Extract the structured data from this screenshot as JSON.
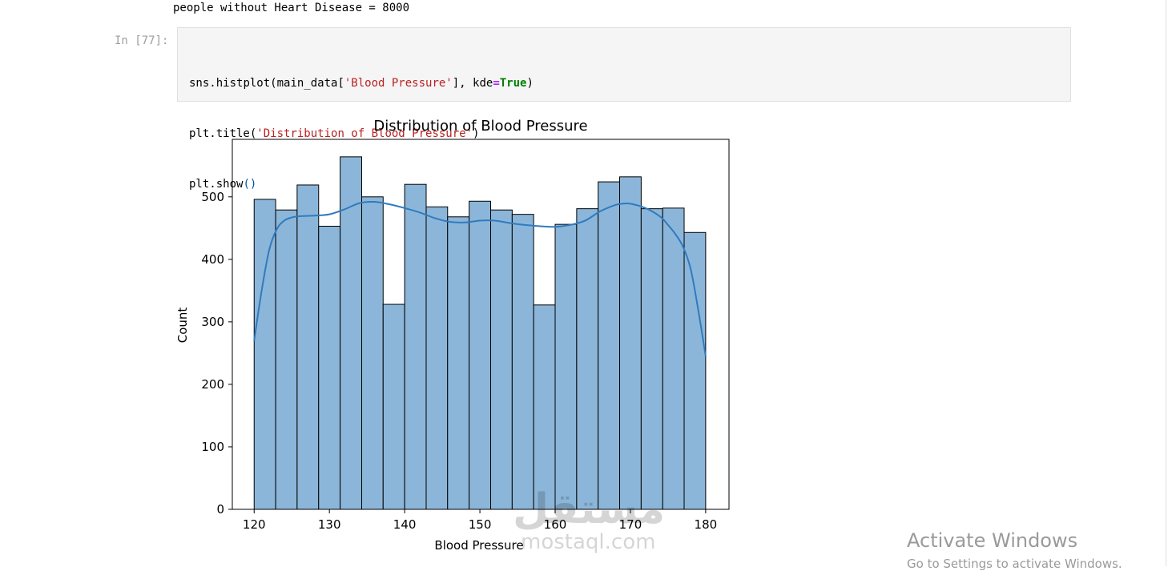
{
  "previous_output": "people without Heart Disease = 8000",
  "cell": {
    "prompt": "In [77]:",
    "code": {
      "l1_a": "sns",
      "l1_b": ".histplot(main_data[",
      "l1_str": "'Blood Pressure'",
      "l1_c": "], kde",
      "l1_eq": "=",
      "l1_true": "True",
      "l1_d": ")",
      "l2_a": "plt.title(",
      "l2_str": "'Distribution of Blood Pressure'",
      "l2_b": ")",
      "l3_a": "plt.show",
      "l3_b": "()"
    }
  },
  "chart_data": {
    "type": "bar",
    "title": "Distribution of Blood Pressure",
    "xlabel": "Blood Pressure",
    "ylabel": "Count",
    "bin_edges": [
      120,
      122.86,
      125.71,
      128.57,
      131.43,
      134.29,
      137.14,
      140,
      142.86,
      145.71,
      148.57,
      151.43,
      154.29,
      157.14,
      160,
      162.86,
      165.71,
      168.57,
      171.43,
      174.29,
      177.14,
      180
    ],
    "values": [
      496,
      479,
      519,
      453,
      564,
      500,
      328,
      520,
      484,
      468,
      493,
      479,
      472,
      327,
      456,
      481,
      524,
      532,
      481,
      482,
      443
    ],
    "kde": {
      "x": [
        120,
        121,
        122,
        123,
        124,
        125,
        126,
        128,
        130,
        132,
        134,
        136,
        138,
        140,
        142,
        144,
        146,
        148,
        150,
        152,
        154,
        156,
        158,
        160,
        162,
        164,
        166,
        168,
        169,
        170,
        172,
        174,
        175,
        176,
        177,
        178,
        179,
        180
      ],
      "y": [
        270,
        350,
        415,
        448,
        462,
        467,
        469,
        470,
        472,
        480,
        490,
        492,
        488,
        482,
        475,
        466,
        460,
        459,
        462,
        462,
        458,
        455,
        453,
        452,
        455,
        462,
        477,
        487,
        489,
        489,
        482,
        468,
        455,
        440,
        420,
        385,
        320,
        245
      ]
    },
    "xticks": [
      120,
      130,
      140,
      150,
      160,
      170,
      180
    ],
    "yticks": [
      0,
      100,
      200,
      300,
      400,
      500
    ],
    "xlim": [
      117.1,
      183.1
    ],
    "ylim": [
      0,
      592
    ],
    "bar_color": "#8cb6d9",
    "bar_edge": "#000000",
    "kde_color": "#2f7bbf"
  },
  "watermark": {
    "arabic": "مستقل",
    "latin": "mostaql.com"
  },
  "activate_windows": {
    "title": "Activate Windows",
    "subtitle": "Go to Settings to activate Windows."
  }
}
